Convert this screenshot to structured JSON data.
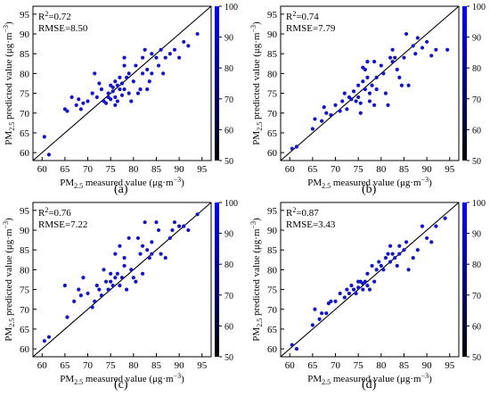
{
  "colorbar": {
    "ticks": [
      50,
      60,
      70,
      80,
      90,
      100
    ],
    "colors": [
      "#000000",
      "#0000ff"
    ]
  },
  "chart_data": [
    {
      "type": "scatter",
      "letter": "(a)",
      "xlabel_prefix": "PM",
      "xlabel_sub": "2.5",
      "xlabel_suffix": " measured value (μg·m",
      "ylabel_prefix": "PM",
      "ylabel_sub": "2.5",
      "ylabel_suffix": " predicted value (μg·m",
      "unit_sup": "−3",
      "unit_close": ")",
      "r2_label": "R",
      "r2_sup": "2",
      "r2_value": "=0.72",
      "rmse": "RMSE=8.50",
      "xlim": [
        58,
        97
      ],
      "ylim": [
        58,
        97
      ],
      "xticks": [
        60,
        65,
        70,
        75,
        80,
        85,
        90,
        95
      ],
      "yticks": [
        60,
        65,
        70,
        75,
        80,
        85,
        90,
        95
      ],
      "points": [
        [
          60.5,
          64
        ],
        [
          61.5,
          59.5
        ],
        [
          65,
          71
        ],
        [
          65.5,
          70.5
        ],
        [
          66.5,
          74
        ],
        [
          67.5,
          72
        ],
        [
          68,
          73.5
        ],
        [
          68.5,
          71
        ],
        [
          69,
          72.5
        ],
        [
          70,
          73
        ],
        [
          71,
          75
        ],
        [
          71.5,
          80
        ],
        [
          72,
          74
        ],
        [
          72.5,
          77.5
        ],
        [
          73,
          76
        ],
        [
          73.5,
          73
        ],
        [
          74,
          72.5
        ],
        [
          74.5,
          75
        ],
        [
          74.5,
          74
        ],
        [
          75,
          77
        ],
        [
          75,
          73.5
        ],
        [
          75.5,
          76.5
        ],
        [
          75.5,
          75.5
        ],
        [
          76,
          78
        ],
        [
          76,
          74
        ],
        [
          76,
          72
        ],
        [
          76.5,
          77
        ],
        [
          76.5,
          73
        ],
        [
          77,
          79
        ],
        [
          77,
          76
        ],
        [
          77.5,
          77.5
        ],
        [
          77.5,
          74.5
        ],
        [
          78,
          84
        ],
        [
          78,
          82
        ],
        [
          78,
          76
        ],
        [
          78.5,
          79
        ],
        [
          79,
          80
        ],
        [
          79,
          75
        ],
        [
          79.5,
          73
        ],
        [
          80,
          78
        ],
        [
          80.5,
          82
        ],
        [
          81,
          75
        ],
        [
          81.5,
          76
        ],
        [
          82,
          84
        ],
        [
          82,
          80
        ],
        [
          82.5,
          86
        ],
        [
          83,
          81
        ],
        [
          83,
          76
        ],
        [
          83.5,
          78
        ],
        [
          84,
          85
        ],
        [
          84,
          80
        ],
        [
          85,
          84
        ],
        [
          85.5,
          82
        ],
        [
          86,
          86
        ],
        [
          86.5,
          80
        ],
        [
          87,
          84
        ],
        [
          88,
          85
        ],
        [
          89,
          86
        ],
        [
          90,
          84
        ],
        [
          91,
          88
        ],
        [
          92,
          87
        ],
        [
          94,
          90
        ]
      ]
    },
    {
      "type": "scatter",
      "letter": "(b)",
      "xlabel_prefix": "PM",
      "xlabel_sub": "2.5",
      "xlabel_suffix": " measured value (μg·m",
      "ylabel_prefix": "PM",
      "ylabel_sub": "2.5",
      "ylabel_suffix": " predicted value (μg·m",
      "unit_sup": "−3",
      "unit_close": ")",
      "r2_label": "R",
      "r2_sup": "2",
      "r2_value": "=0.74",
      "rmse": "RMSE=7.79",
      "xlim": [
        58,
        97
      ],
      "ylim": [
        58,
        97
      ],
      "xticks": [
        60,
        65,
        70,
        75,
        80,
        85,
        90,
        95
      ],
      "yticks": [
        60,
        65,
        70,
        75,
        80,
        85,
        90,
        95
      ],
      "points": [
        [
          60.5,
          61
        ],
        [
          61.5,
          61.5
        ],
        [
          65,
          66
        ],
        [
          65.5,
          68.5
        ],
        [
          67,
          68
        ],
        [
          67.5,
          71.5
        ],
        [
          68,
          70
        ],
        [
          69,
          69.5
        ],
        [
          70,
          72
        ],
        [
          71,
          70.5
        ],
        [
          71.5,
          73
        ],
        [
          72,
          75
        ],
        [
          72.5,
          71
        ],
        [
          73,
          74
        ],
        [
          73.5,
          73.5
        ],
        [
          74,
          75.5
        ],
        [
          74.5,
          73
        ],
        [
          75,
          77
        ],
        [
          75,
          74
        ],
        [
          75.5,
          72.5
        ],
        [
          75.5,
          70
        ],
        [
          76,
          78
        ],
        [
          76,
          81.5
        ],
        [
          76.5,
          81
        ],
        [
          76.5,
          76
        ],
        [
          77,
          83
        ],
        [
          77,
          79
        ],
        [
          77.5,
          75
        ],
        [
          77.5,
          73
        ],
        [
          78,
          77
        ],
        [
          78.5,
          83
        ],
        [
          78.5,
          72
        ],
        [
          79,
          79
        ],
        [
          79,
          76
        ],
        [
          80,
          82
        ],
        [
          80.5,
          80
        ],
        [
          81,
          75
        ],
        [
          81.5,
          72
        ],
        [
          82,
          84
        ],
        [
          82.5,
          86
        ],
        [
          82.5,
          83
        ],
        [
          83,
          84
        ],
        [
          83.5,
          81
        ],
        [
          84,
          79
        ],
        [
          84.5,
          77
        ],
        [
          85,
          84
        ],
        [
          85.5,
          90
        ],
        [
          86,
          77
        ],
        [
          87,
          87
        ],
        [
          87.5,
          85
        ],
        [
          88,
          89
        ],
        [
          89,
          86.5
        ],
        [
          90,
          88
        ],
        [
          91,
          84.5
        ],
        [
          92,
          86
        ],
        [
          94.5,
          86
        ]
      ]
    },
    {
      "type": "scatter",
      "letter": "(c)",
      "xlabel_prefix": "PM",
      "xlabel_sub": "2.5",
      "xlabel_suffix": " measured value (μg·m",
      "ylabel_prefix": "PM",
      "ylabel_sub": "2.5",
      "ylabel_suffix": " predicted value (μg·m",
      "unit_sup": "−3",
      "unit_close": ")",
      "r2_label": "R",
      "r2_sup": "2",
      "r2_value": "=0.76",
      "rmse": "RMSE=7.22",
      "xlim": [
        58,
        97
      ],
      "ylim": [
        58,
        97
      ],
      "xticks": [
        60,
        65,
        70,
        75,
        80,
        85,
        90,
        95
      ],
      "yticks": [
        60,
        65,
        70,
        75,
        80,
        85,
        90,
        95
      ],
      "points": [
        [
          60.5,
          62
        ],
        [
          61.5,
          63
        ],
        [
          65,
          76
        ],
        [
          65.5,
          68
        ],
        [
          67,
          72
        ],
        [
          68,
          75
        ],
        [
          68.5,
          73.5
        ],
        [
          69,
          78
        ],
        [
          70,
          74
        ],
        [
          71,
          70.5
        ],
        [
          71.5,
          72
        ],
        [
          72,
          76
        ],
        [
          72.5,
          75
        ],
        [
          73,
          73.5
        ],
        [
          73.5,
          80
        ],
        [
          74,
          77
        ],
        [
          74.5,
          75
        ],
        [
          75,
          79
        ],
        [
          75,
          77
        ],
        [
          75.5,
          76
        ],
        [
          76,
          84
        ],
        [
          76,
          78
        ],
        [
          76.5,
          79
        ],
        [
          77,
          86
        ],
        [
          77,
          76
        ],
        [
          77.5,
          78
        ],
        [
          78,
          83
        ],
        [
          78,
          81
        ],
        [
          78.5,
          75
        ],
        [
          79,
          88
        ],
        [
          79.5,
          80
        ],
        [
          80,
          78
        ],
        [
          80.5,
          77
        ],
        [
          81,
          88
        ],
        [
          81.5,
          84
        ],
        [
          82,
          86
        ],
        [
          82,
          79
        ],
        [
          82.5,
          92
        ],
        [
          83,
          85
        ],
        [
          83.5,
          83
        ],
        [
          84,
          87
        ],
        [
          84,
          84
        ],
        [
          85,
          92
        ],
        [
          85.5,
          90
        ],
        [
          86,
          84
        ],
        [
          87,
          83
        ],
        [
          88,
          88
        ],
        [
          88.5,
          90
        ],
        [
          89,
          92
        ],
        [
          90,
          91
        ],
        [
          91,
          91
        ],
        [
          92,
          90
        ],
        [
          94,
          94
        ]
      ]
    },
    {
      "type": "scatter",
      "letter": "(d)",
      "xlabel_prefix": "PM",
      "xlabel_sub": "2.5",
      "xlabel_suffix": " measured value (μg·m",
      "ylabel_prefix": "PM",
      "ylabel_sub": "2.5",
      "ylabel_suffix": " predicted value (μg·m",
      "unit_sup": "−3",
      "unit_close": ")",
      "r2_label": "R",
      "r2_sup": "2",
      "r2_value": "=0.87",
      "rmse": "RMSE=3.43",
      "xlim": [
        58,
        97
      ],
      "ylim": [
        58,
        97
      ],
      "xticks": [
        60,
        65,
        70,
        75,
        80,
        85,
        90,
        95
      ],
      "yticks": [
        60,
        65,
        70,
        75,
        80,
        85,
        90,
        95
      ],
      "points": [
        [
          60.5,
          61
        ],
        [
          61.5,
          60
        ],
        [
          65,
          66
        ],
        [
          65.5,
          70
        ],
        [
          66.5,
          67.5
        ],
        [
          67,
          69
        ],
        [
          68,
          69
        ],
        [
          68.5,
          71.5
        ],
        [
          69,
          72
        ],
        [
          70,
          72
        ],
        [
          71,
          74
        ],
        [
          72,
          73
        ],
        [
          72.5,
          75
        ],
        [
          73,
          74
        ],
        [
          73.5,
          76
        ],
        [
          74,
          75
        ],
        [
          74.5,
          74
        ],
        [
          75,
          77
        ],
        [
          75,
          75.5
        ],
        [
          75.5,
          77
        ],
        [
          76,
          76.5
        ],
        [
          76,
          75
        ],
        [
          76.5,
          77
        ],
        [
          77,
          79
        ],
        [
          77,
          76
        ],
        [
          77.5,
          75
        ],
        [
          78,
          81
        ],
        [
          78.5,
          77
        ],
        [
          79,
          80
        ],
        [
          79.5,
          82
        ],
        [
          80,
          81
        ],
        [
          80.5,
          80
        ],
        [
          81,
          83
        ],
        [
          81.5,
          84
        ],
        [
          82,
          86
        ],
        [
          82,
          82
        ],
        [
          82.5,
          84
        ],
        [
          83,
          83
        ],
        [
          83.5,
          81
        ],
        [
          84,
          86
        ],
        [
          84,
          84
        ],
        [
          85,
          85
        ],
        [
          85.5,
          87
        ],
        [
          86,
          80
        ],
        [
          87,
          83
        ],
        [
          88,
          85
        ],
        [
          89,
          91
        ],
        [
          90,
          88
        ],
        [
          91,
          87
        ],
        [
          92,
          91
        ],
        [
          94,
          93
        ]
      ]
    }
  ]
}
